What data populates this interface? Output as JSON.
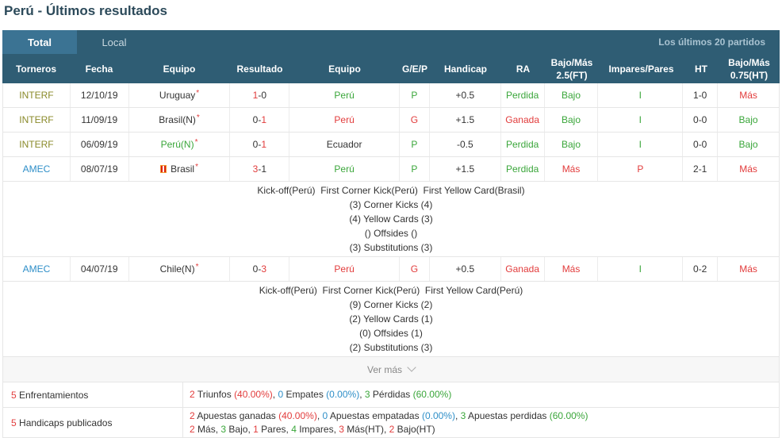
{
  "title": "Perú - Últimos resultados",
  "tabs": [
    "Total",
    "Local"
  ],
  "last_n": "Los últimos 20 partidos",
  "headers": [
    "Torneros",
    "Fecha",
    "Equipo",
    "Resultado",
    "Equipo",
    "G/E/P",
    "Handicap",
    "RA",
    "Bajo/Más 2.5(FT)",
    "Impares/Pares",
    "HT",
    "Bajo/Más 0.75(HT)"
  ],
  "matches": [
    {
      "comp": "INTERF",
      "date": "12/10/19",
      "home": "Uruguay",
      "score_a": "1",
      "score_b": "0",
      "away": "Perú",
      "gep": "P",
      "hcp": "+0.5",
      "ra": "Perdida",
      "ou": "Bajo",
      "oe": "I",
      "ht": "1-0",
      "ou_ht": "Más"
    },
    {
      "comp": "INTERF",
      "date": "11/09/19",
      "home": "Brasil(N)",
      "score_a": "0",
      "score_b": "1",
      "away": "Perú",
      "gep": "G",
      "hcp": "+1.5",
      "ra": "Ganada",
      "ou": "Bajo",
      "oe": "I",
      "ht": "0-0",
      "ou_ht": "Bajo"
    },
    {
      "comp": "INTERF",
      "date": "06/09/19",
      "home": "Perú(N)",
      "score_a": "0",
      "score_b": "1",
      "away": "Ecuador",
      "gep": "P",
      "hcp": "-0.5",
      "ra": "Perdida",
      "ou": "Bajo",
      "oe": "I",
      "ht": "0-0",
      "ou_ht": "Bajo"
    },
    {
      "comp": "AMEC",
      "date": "08/07/19",
      "home": "Brasil",
      "score_a": "3",
      "score_b": "1",
      "away": "Perú",
      "gep": "P",
      "hcp": "+1.5",
      "ra": "Perdida",
      "ou": "Más",
      "oe": "P",
      "ht": "2-1",
      "ou_ht": "Más"
    },
    {
      "comp": "AMEC",
      "date": "04/07/19",
      "home": "Chile(N)",
      "score_a": "0",
      "score_b": "3",
      "away": "Perú",
      "gep": "G",
      "hcp": "+0.5",
      "ra": "Ganada",
      "ou": "Más",
      "oe": "I",
      "ht": "0-2",
      "ou_ht": "Más"
    }
  ],
  "details1": [
    "Kick-off(Perú)  First Corner Kick(Perú)  First Yellow Card(Brasil)",
    "(3) Corner Kicks (4)",
    "(4) Yellow Cards (3)",
    "() Offsides ()",
    "(3) Substitutions (3)"
  ],
  "details2": [
    "Kick-off(Perú)  First Corner Kick(Perú)  First Yellow Card(Perú)",
    "(9) Corner Kicks (2)",
    "(2) Yellow Cards (1)",
    "(0) Offsides (1)",
    "(2) Substitutions (3)"
  ],
  "more": "Ver más",
  "summary": {
    "enf_n": "5",
    "enf_label": "Enfrentamientos",
    "w": "2",
    "w_label": "Triunfos",
    "w_pct": "(40.00%)",
    "d": "0",
    "d_label": "Empates",
    "d_pct": "(0.00%)",
    "l": "3",
    "l_label": "Pérdidas",
    "l_pct": "(60.00%)",
    "hcp_n": "5",
    "hcp_label": "Handicaps publicados",
    "aw": "2",
    "aw_label": "Apuestas ganadas",
    "aw_pct": "(40.00%)",
    "ad": "0",
    "ad_label": "Apuestas empatadas",
    "ad_pct": "(0.00%)",
    "al": "3",
    "al_label": "Apuestas perdidas",
    "al_pct": "(60.00%)",
    "mas": "2",
    "mas_label": "Más,",
    "bajo": "3",
    "bajo_label": "Bajo,",
    "pares": "1",
    "pares_label": "Pares,",
    "impares": "4",
    "impares_label": "Impares,",
    "masht": "3",
    "masht_label": "Más(HT),",
    "bajoht": "2",
    "bajoht_label": "Bajo(HT)"
  }
}
